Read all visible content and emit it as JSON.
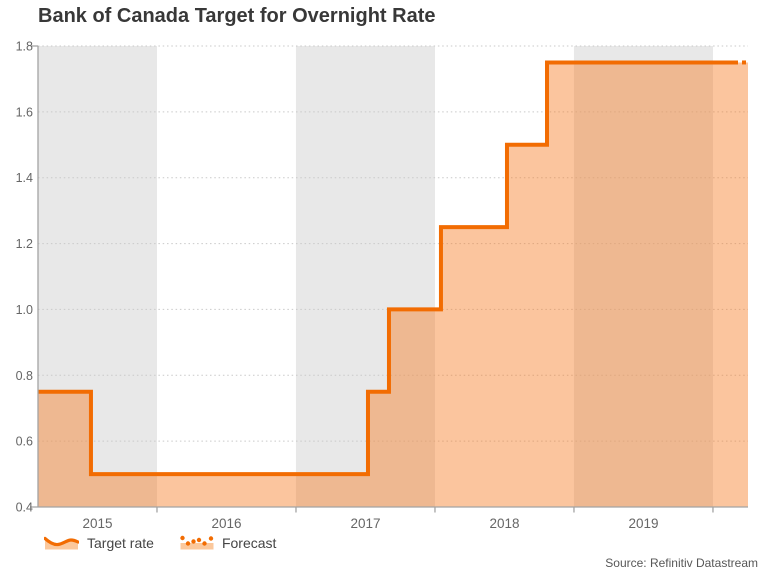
{
  "page": {
    "title": "Bank of Canada Target for Overnight Rate",
    "source": "Source: Refinitiv Datastream"
  },
  "legend": {
    "items": [
      {
        "label": "Target rate",
        "swatch": "solid-line-with-area"
      },
      {
        "label": "Forecast",
        "swatch": "dotted-line-with-area"
      }
    ]
  },
  "colors": {
    "line": "#F26C02",
    "fill": "rgba(246,126,41,0.45)",
    "band": "#E8E8E8",
    "grid": "#C9C9C9",
    "axis": "#A3A3A3",
    "tick_text": "#666666",
    "title_text": "#383838",
    "legend_text": "#454545",
    "source_text": "#575757",
    "legend_fill": "#FBC89C"
  },
  "chart_data": {
    "type": "line",
    "step": true,
    "title": "Bank of Canada Target for Overnight Rate",
    "xlabel": "",
    "ylabel": "",
    "xlim": [
      2015.144,
      2020.252
    ],
    "ylim": [
      0.4,
      1.8
    ],
    "y_ticks": [
      0.4,
      0.6,
      0.8,
      1.0,
      1.2,
      1.4,
      1.6,
      1.8
    ],
    "y_tick_labels": [
      "0.4",
      "0.6",
      "0.8",
      "1.0",
      "1.2",
      "1.4",
      "1.6",
      "1.8"
    ],
    "x_tick_years": [
      2016,
      2017,
      2018,
      2019,
      2020
    ],
    "x_year_labels": [
      "2015",
      "2016",
      "2017",
      "2018",
      "2019"
    ],
    "shaded_years": [
      2015,
      2017,
      2019
    ],
    "grid": "horizontal-dotted",
    "legend_position": "bottom-left",
    "series": [
      {
        "name": "Target rate",
        "style": "solid",
        "area": true,
        "points": [
          [
            2015.144,
            0.75
          ],
          [
            2015.525,
            0.75
          ],
          [
            2015.525,
            0.5
          ],
          [
            2017.518,
            0.5
          ],
          [
            2017.518,
            0.75
          ],
          [
            2017.669,
            0.75
          ],
          [
            2017.669,
            1.0
          ],
          [
            2018.043,
            1.0
          ],
          [
            2018.043,
            1.25
          ],
          [
            2018.518,
            1.25
          ],
          [
            2018.518,
            1.5
          ],
          [
            2018.806,
            1.5
          ],
          [
            2018.806,
            1.75
          ],
          [
            2020.18,
            1.75
          ]
        ]
      },
      {
        "name": "Forecast",
        "style": "dotted",
        "area": true,
        "points": [
          [
            2020.18,
            1.75
          ],
          [
            2020.252,
            1.75
          ]
        ]
      }
    ]
  }
}
